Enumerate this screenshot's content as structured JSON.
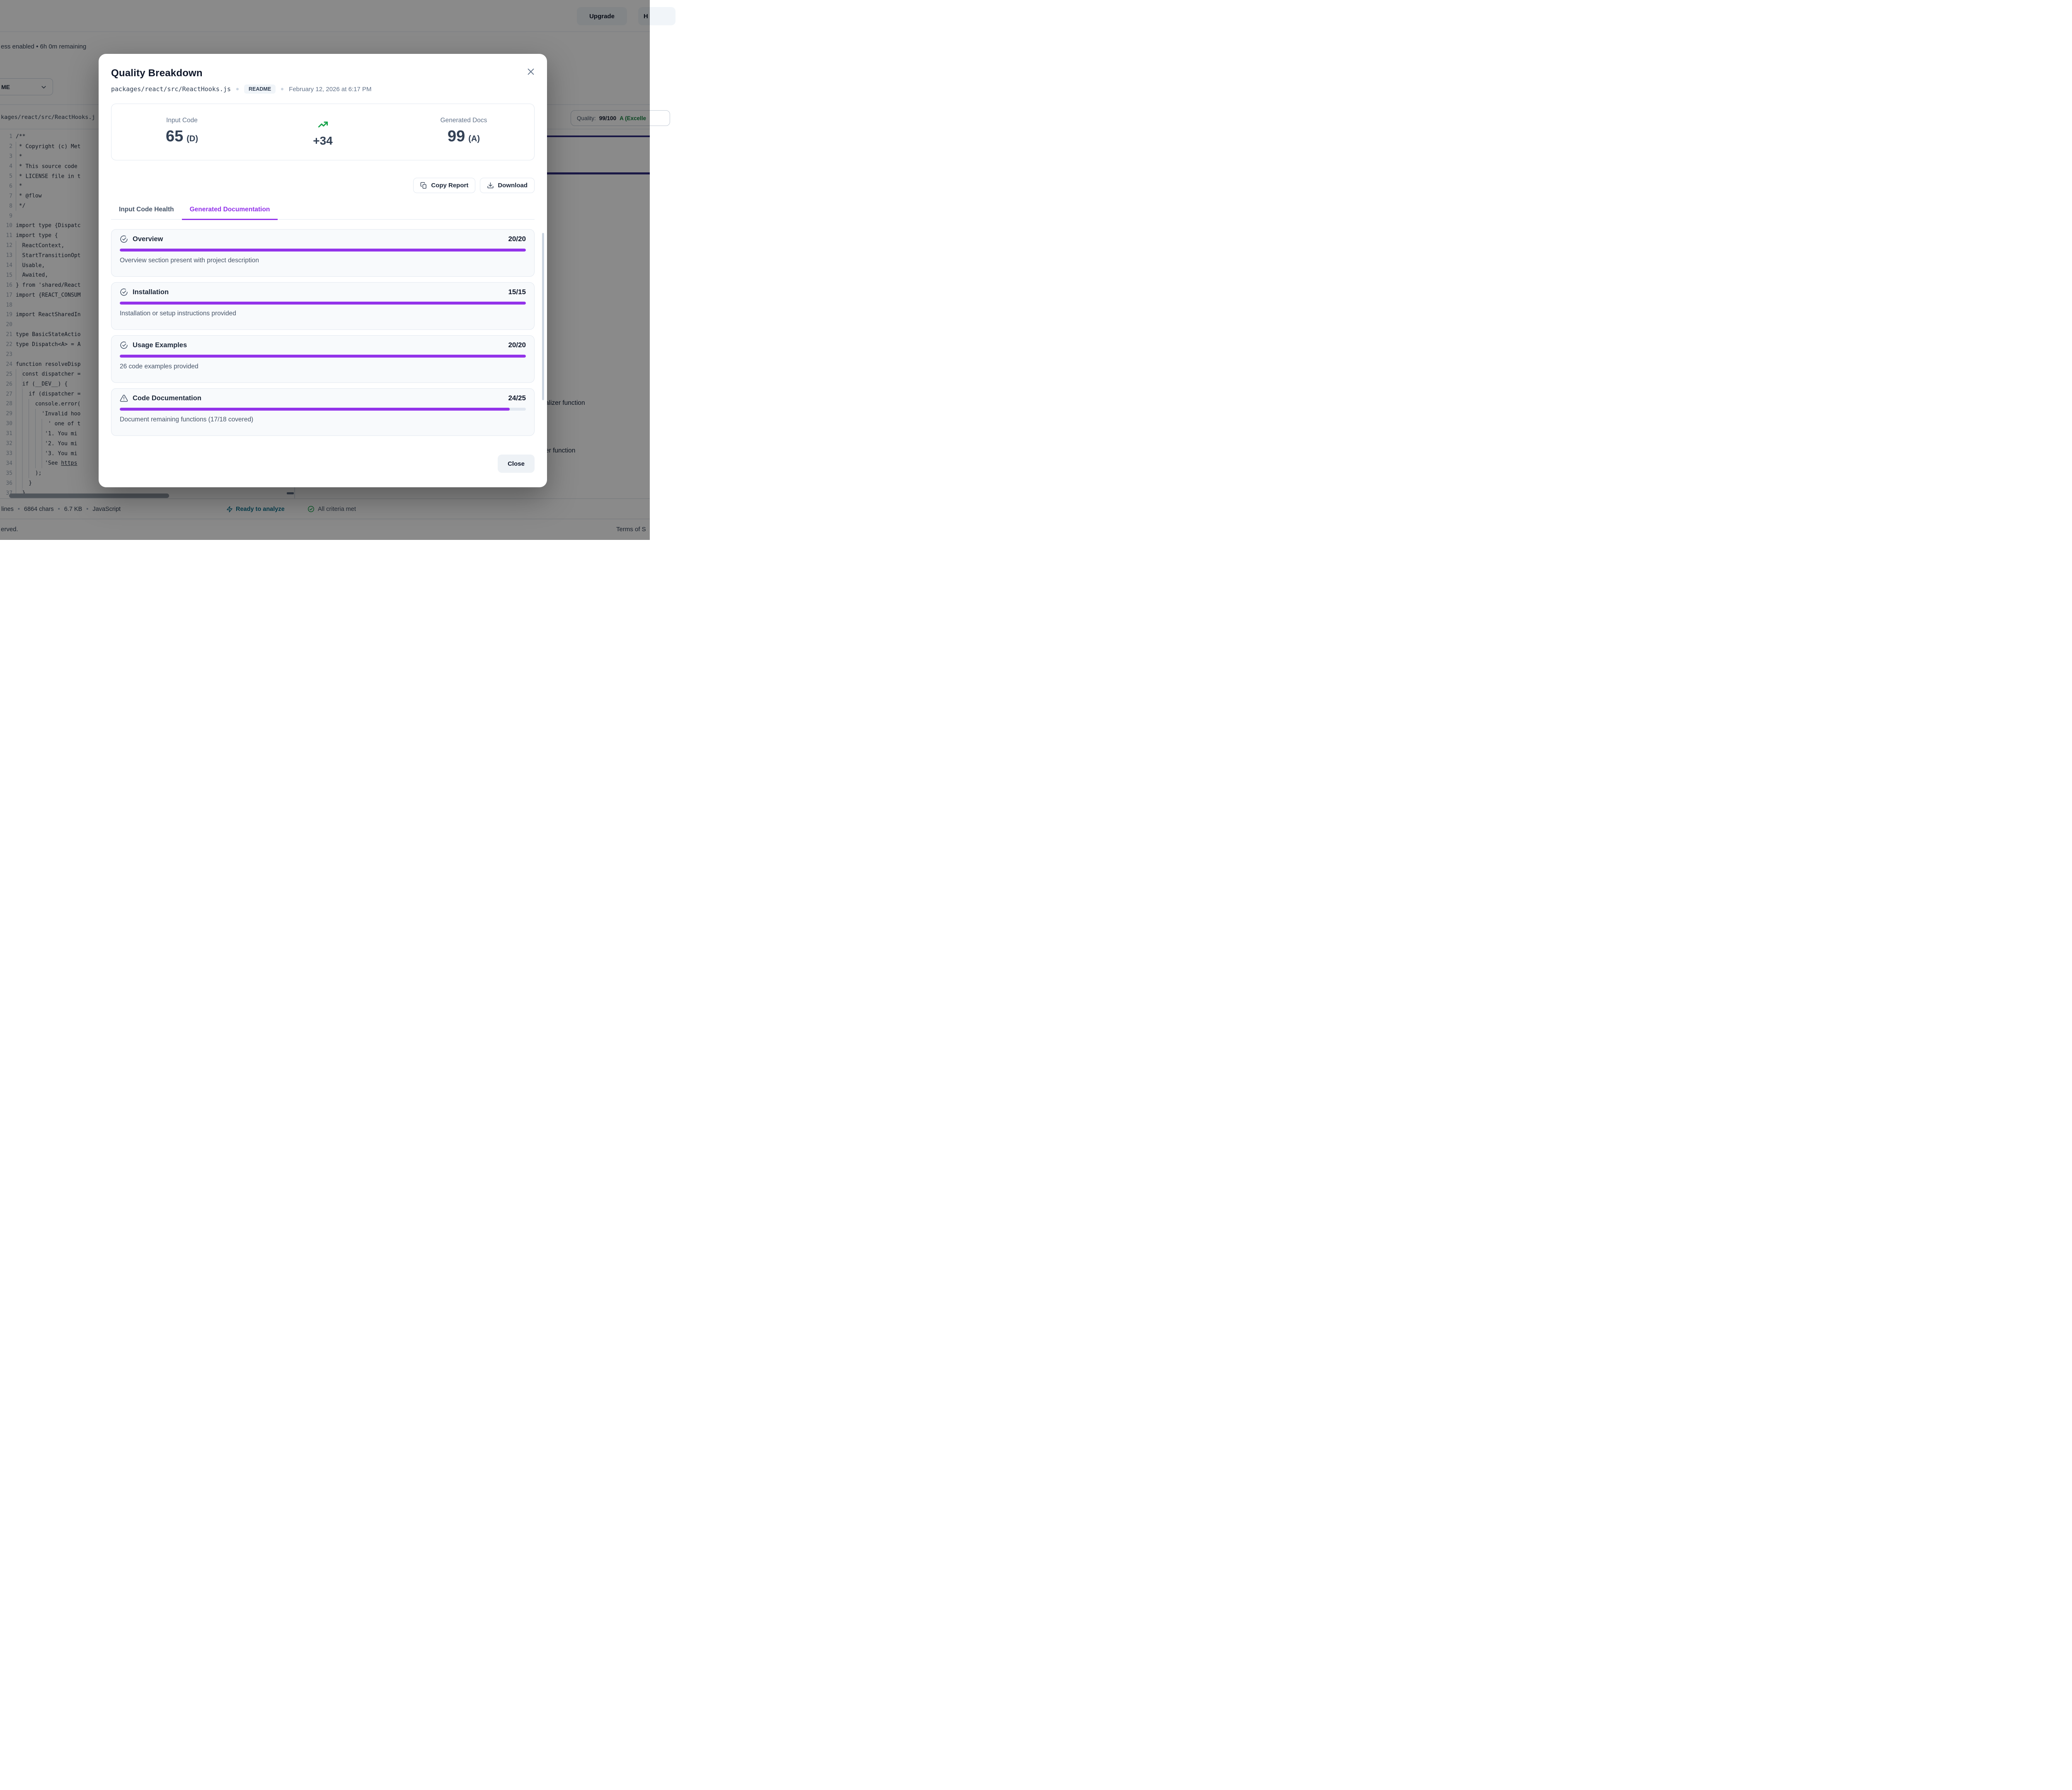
{
  "app": {
    "topbar": {
      "upgrade": "Upgrade",
      "partial_right": "H"
    },
    "session_note": "ess enabled • 6h 0m remaining",
    "toolbar": {
      "select_value": "ME"
    },
    "file_strip": {
      "path": "kages/react/src/ReactHooks.j",
      "quality_label": "Quality:",
      "quality_score": "99/100",
      "quality_grade": "A (Excelle"
    },
    "editor": {
      "lines": [
        {
          "n": "1",
          "ws": 0,
          "t": "/**"
        },
        {
          "n": "2",
          "ws": 1,
          "t": "* Copyright (c) Met"
        },
        {
          "n": "3",
          "ws": 1,
          "t": "*"
        },
        {
          "n": "4",
          "ws": 1,
          "t": "* This source code"
        },
        {
          "n": "5",
          "ws": 1,
          "t": "* LICENSE file in t"
        },
        {
          "n": "6",
          "ws": 1,
          "t": "*"
        },
        {
          "n": "7",
          "ws": 1,
          "t": "* @flow"
        },
        {
          "n": "8",
          "ws": 1,
          "t": "*/"
        },
        {
          "n": "9",
          "ws": 0,
          "t": ""
        },
        {
          "n": "10",
          "ws": 0,
          "t": "import type {Dispatc"
        },
        {
          "n": "11",
          "ws": 0,
          "t": "import type {"
        },
        {
          "n": "12",
          "ws": 2,
          "t": "ReactContext,"
        },
        {
          "n": "13",
          "ws": 2,
          "t": "StartTransitionOpt"
        },
        {
          "n": "14",
          "ws": 2,
          "t": "Usable,"
        },
        {
          "n": "15",
          "ws": 2,
          "t": "Awaited,"
        },
        {
          "n": "16",
          "ws": 0,
          "t": "} from 'shared/React"
        },
        {
          "n": "17",
          "ws": 0,
          "t": "import {REACT_CONSUM"
        },
        {
          "n": "18",
          "ws": 0,
          "t": ""
        },
        {
          "n": "19",
          "ws": 0,
          "t": "import ReactSharedIn"
        },
        {
          "n": "20",
          "ws": 0,
          "t": ""
        },
        {
          "n": "21",
          "ws": 0,
          "t": "type BasicStateActio"
        },
        {
          "n": "22",
          "ws": 0,
          "t": "type Dispatch<A> = A"
        },
        {
          "n": "23",
          "ws": 0,
          "t": ""
        },
        {
          "n": "24",
          "ws": 0,
          "t": "function resolveDisp"
        },
        {
          "n": "25",
          "ws": 2,
          "t": "const dispatcher ="
        },
        {
          "n": "26",
          "ws": 2,
          "t": "if (__DEV__) {"
        },
        {
          "n": "27",
          "ws": 4,
          "t": "if (dispatcher ="
        },
        {
          "n": "28",
          "ws": 6,
          "t": "console.error("
        },
        {
          "n": "29",
          "ws": 8,
          "t": "'Invalid hoo"
        },
        {
          "n": "30",
          "ws": 10,
          "t": "' one of t"
        },
        {
          "n": "31",
          "ws": 9,
          "t": "'1. You mi"
        },
        {
          "n": "32",
          "ws": 9,
          "t": "'2. You mi"
        },
        {
          "n": "33",
          "ws": 9,
          "t": "'3. You mi"
        },
        {
          "n": "34",
          "ws": 9,
          "t": "'See ",
          "link": "https"
        },
        {
          "n": "35",
          "ws": 6,
          "t": ");"
        },
        {
          "n": "36",
          "ws": 4,
          "t": "}"
        },
        {
          "n": "37",
          "ws": 2,
          "t": "}"
        }
      ]
    },
    "right_panel": {
      "peek_items": [
        "alizer function",
        "er function"
      ]
    },
    "status_bar": {
      "file_stats": [
        "lines",
        "6864 chars",
        "6.7 KB",
        "JavaScript"
      ],
      "ready": "Ready to analyze",
      "criteria_status": "All criteria met"
    },
    "footer": {
      "left": "erved.",
      "right": "Terms of S"
    }
  },
  "modal": {
    "title": "Quality Breakdown",
    "file": "packages/react/src/ReactHooks.js",
    "badge": "README",
    "date": "February 12, 2026 at 6:17 PM",
    "stats": {
      "input_label": "Input Code",
      "input_score": "65",
      "input_grade": "(D)",
      "delta": "+34",
      "output_label": "Generated Docs",
      "output_score": "99",
      "output_grade": "(A)"
    },
    "actions": {
      "copy": "Copy Report",
      "download": "Download"
    },
    "tabs": [
      {
        "label": "Input Code Health",
        "active": false
      },
      {
        "label": "Generated Documentation",
        "active": true
      }
    ],
    "criteria": [
      {
        "name": "Overview",
        "score": "20/20",
        "pct": 100,
        "desc": "Overview section present with project description",
        "status": "ok"
      },
      {
        "name": "Installation",
        "score": "15/15",
        "pct": 100,
        "desc": "Installation or setup instructions provided",
        "status": "ok"
      },
      {
        "name": "Usage Examples",
        "score": "20/20",
        "pct": 100,
        "desc": "26 code examples provided",
        "status": "ok"
      },
      {
        "name": "Code Documentation",
        "score": "24/25",
        "pct": 96,
        "desc": "Document remaining functions (17/18 covered)",
        "status": "warn"
      }
    ],
    "close_label": "Close"
  },
  "colors": {
    "accent_purple": "#9333ea",
    "success_green": "#16a34a",
    "grade_green": "#15803d",
    "ready_teal": "#0e7490",
    "indigo_bar": "#312e81"
  }
}
